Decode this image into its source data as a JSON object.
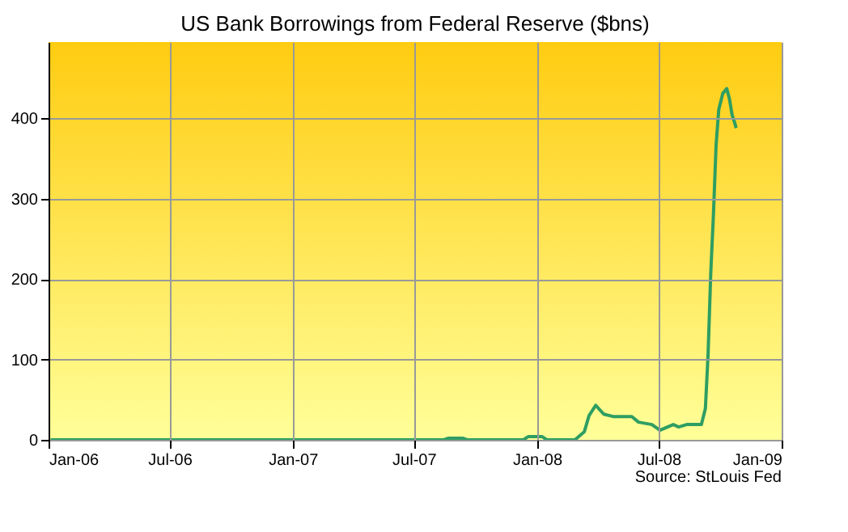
{
  "chart_data": {
    "type": "line",
    "title": "US Bank Borrowings from Federal Reserve ($bns)",
    "x": [
      "2006-01-04",
      "2007-08-15",
      "2007-08-22",
      "2007-09-12",
      "2007-09-19",
      "2007-12-12",
      "2007-12-19",
      "2008-01-09",
      "2008-01-16",
      "2008-02-27",
      "2008-03-12",
      "2008-03-19",
      "2008-03-29",
      "2008-04-10",
      "2008-04-24",
      "2008-05-22",
      "2008-06-01",
      "2008-06-21",
      "2008-07-03",
      "2008-07-23",
      "2008-07-31",
      "2008-08-12",
      "2008-09-03",
      "2008-09-09",
      "2008-09-13",
      "2008-09-17",
      "2008-09-21",
      "2008-09-25",
      "2008-09-29",
      "2008-10-05",
      "2008-10-11",
      "2008-10-15",
      "2008-10-19",
      "2008-10-23",
      "2008-10-25"
    ],
    "series": [
      {
        "color": "#2e9e62",
        "values": [
          0,
          0,
          2,
          2,
          0,
          0,
          4,
          4,
          0,
          0,
          10,
          30,
          43,
          32,
          29,
          29,
          22,
          19,
          12,
          19,
          16,
          19,
          19,
          39,
          106,
          207,
          280,
          367,
          411,
          431,
          437,
          424,
          404,
          394,
          388
        ]
      }
    ],
    "xlim": [
      "2006-01-01",
      "2009-01-01"
    ],
    "xticks": [
      {
        "value": "2006-01-01",
        "label": "Jan-06"
      },
      {
        "value": "2006-07-01",
        "label": "Jul-06"
      },
      {
        "value": "2007-01-01",
        "label": "Jan-07"
      },
      {
        "value": "2007-07-01",
        "label": "Jul-07"
      },
      {
        "value": "2008-01-01",
        "label": "Jan-08"
      },
      {
        "value": "2008-07-01",
        "label": "Jul-08"
      },
      {
        "value": "2009-01-01",
        "label": "Jan-09"
      }
    ],
    "ylim": [
      0,
      495
    ],
    "yticks": [
      0,
      100,
      200,
      300,
      400
    ],
    "grid": true,
    "line_style": "solid",
    "annotations": [
      "Source: StLouis Fed"
    ]
  }
}
